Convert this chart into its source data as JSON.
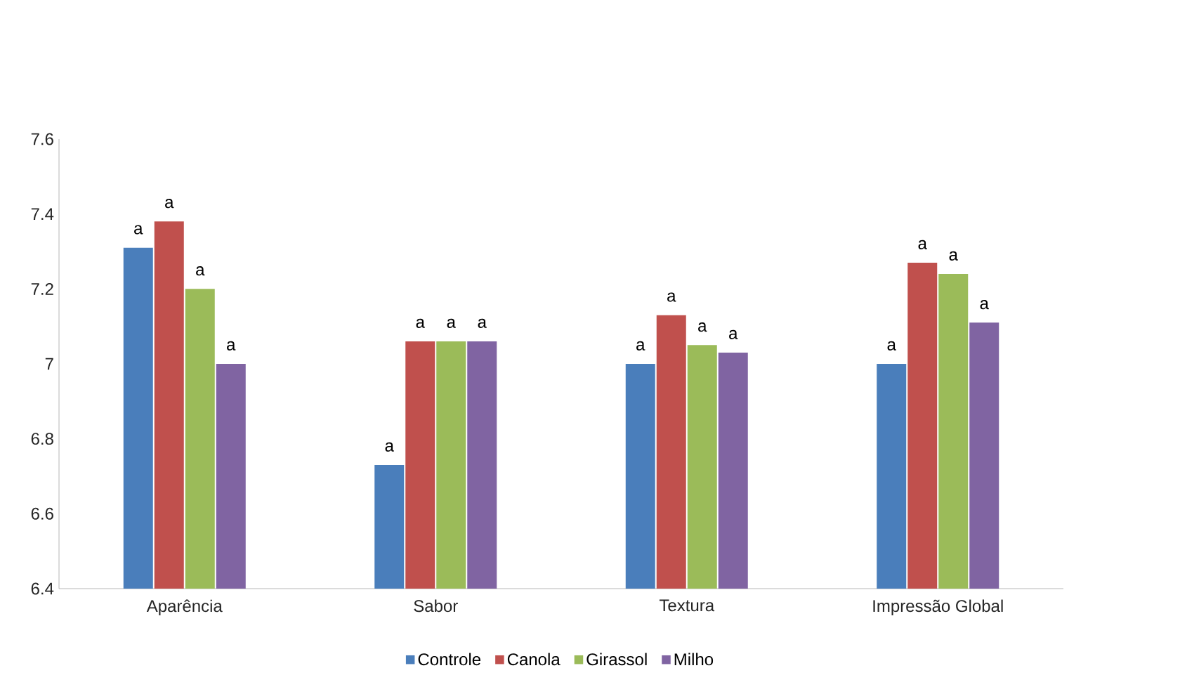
{
  "chart_data": {
    "type": "bar",
    "categories": [
      "Aparência",
      "Sabor",
      "Textura",
      "Impressão Global"
    ],
    "series": [
      {
        "name": "Controle",
        "color": "#4a7ebb",
        "values": [
          7.31,
          6.73,
          7.0,
          7.0
        ],
        "value_labels": [
          "a",
          "a",
          "a",
          "a"
        ]
      },
      {
        "name": "Canola",
        "color": "#c0504d",
        "values": [
          7.38,
          7.06,
          7.13,
          7.27
        ],
        "value_labels": [
          "a",
          "a",
          "a",
          "a"
        ]
      },
      {
        "name": "Girassol",
        "color": "#9bbb59",
        "values": [
          7.2,
          7.06,
          7.05,
          7.24
        ],
        "value_labels": [
          "a",
          "a",
          "a",
          "a"
        ]
      },
      {
        "name": "Milho",
        "color": "#8064a2",
        "values": [
          7.0,
          7.06,
          7.03,
          7.11
        ],
        "value_labels": [
          "a",
          "a",
          "a",
          "a"
        ]
      }
    ],
    "ylim": [
      6.4,
      7.6
    ],
    "yticks": [
      6.4,
      6.6,
      6.8,
      7,
      7.2,
      7.4,
      7.6
    ],
    "grid": false,
    "legend": "bottom"
  }
}
